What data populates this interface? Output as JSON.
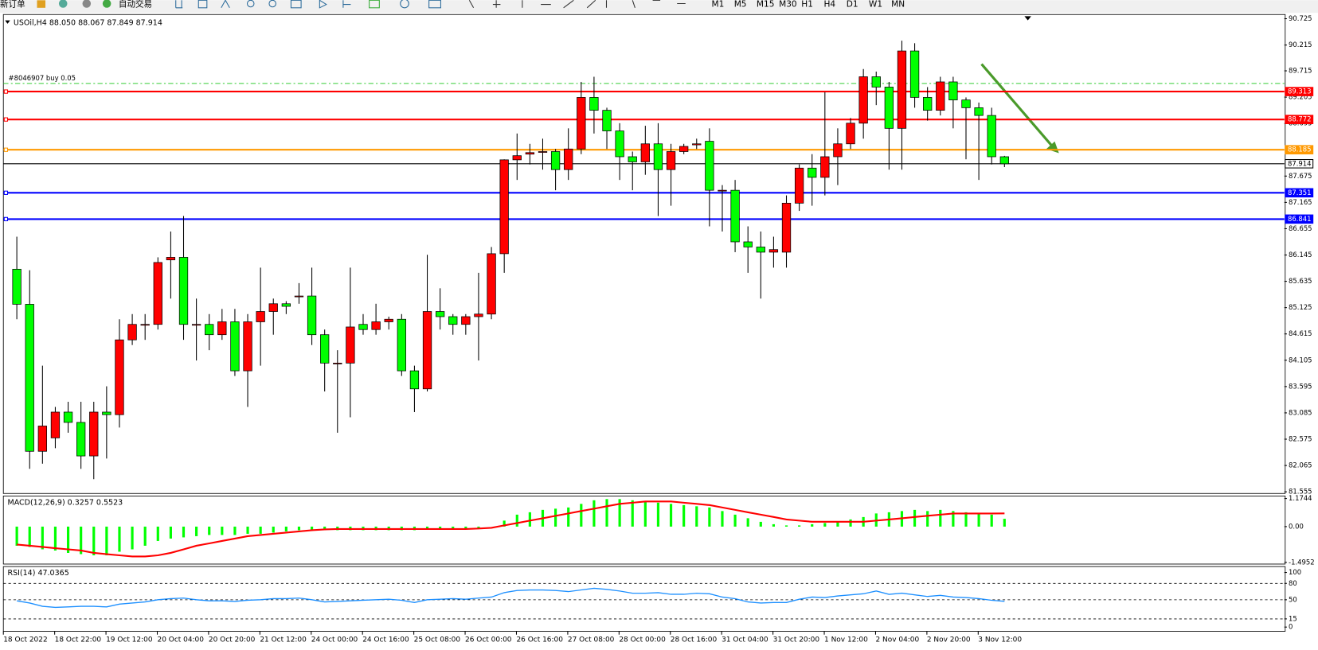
{
  "toolbar": {
    "new_order": "新订单",
    "auto_trading": "自动交易",
    "timeframes": [
      "M1",
      "M5",
      "M15",
      "M30",
      "H1",
      "H4",
      "D1",
      "W1",
      "MN"
    ]
  },
  "chart_data": [
    {
      "type": "candlestick",
      "title": "USOil,H4 88.050 88.067 87.849 87.914",
      "categories": [
        "18 Oct 2022",
        null,
        null,
        null,
        "18 Oct 22:00",
        null,
        null,
        null,
        "19 Oct 12:00",
        null,
        null,
        null,
        "20 Oct 04:00",
        null,
        null,
        null,
        "20 Oct 20:00",
        null,
        null,
        null,
        "21 Oct 12:00",
        null,
        null,
        null,
        "24 Oct 00:00",
        null,
        null,
        null,
        "24 Oct 16:00",
        null,
        null,
        null,
        "25 Oct 08:00",
        null,
        null,
        null,
        "26 Oct 00:00",
        null,
        null,
        null,
        "26 Oct 16:00",
        null,
        null,
        null,
        "27 Oct 08:00",
        null,
        null,
        null,
        "28 Oct 00:00",
        null,
        null,
        null,
        "28 Oct 16:00",
        null,
        null,
        null,
        "31 Oct 04:00",
        null,
        null,
        null,
        "31 Oct 20:00",
        null,
        null,
        null,
        "1 Nov 12:00",
        null,
        null,
        null,
        "2 Nov 04:00",
        null,
        null,
        null,
        "2 Nov 20:00",
        null,
        null,
        null,
        "3 Nov 12:00",
        null
      ],
      "open": [
        85.87,
        85.19,
        82.34,
        82.6,
        83.1,
        82.9,
        82.25,
        83.1,
        83.05,
        84.5,
        84.8,
        84.8,
        86.05,
        86.1,
        84.8,
        84.8,
        84.6,
        84.85,
        83.9,
        84.85,
        85.05,
        85.2,
        85.35,
        85.35,
        84.6,
        84.05,
        84.05,
        84.8,
        84.7,
        84.85,
        84.9,
        83.9,
        83.55,
        85.05,
        84.95,
        84.8,
        84.95,
        85.0,
        86.17,
        87.99,
        88.1,
        88.15,
        88.15,
        87.8,
        88.2,
        89.2,
        88.95,
        88.55,
        88.05,
        87.95,
        88.3,
        87.8,
        88.15,
        88.28,
        88.35,
        87.4,
        87.4,
        86.4,
        86.3,
        86.2,
        86.2,
        87.15,
        87.83,
        87.65,
        88.05,
        88.3,
        88.7,
        89.6,
        89.4,
        88.6,
        90.1,
        89.2,
        88.95,
        89.5,
        89.15,
        89.0,
        88.85,
        88.05
      ],
      "high": [
        86.5,
        85.85,
        84.0,
        83.2,
        83.3,
        83.3,
        83.3,
        83.6,
        84.9,
        85.0,
        85.0,
        86.1,
        86.6,
        86.9,
        85.3,
        85.0,
        85.1,
        85.1,
        85.0,
        85.9,
        85.3,
        85.25,
        85.6,
        85.9,
        84.7,
        84.3,
        85.9,
        85.0,
        85.2,
        84.95,
        85.0,
        84.0,
        86.15,
        85.5,
        85.0,
        85.0,
        85.8,
        86.3,
        88.0,
        88.5,
        88.3,
        88.4,
        88.2,
        88.6,
        89.5,
        89.6,
        89.0,
        88.7,
        88.15,
        88.65,
        88.7,
        88.3,
        88.3,
        88.4,
        88.6,
        87.5,
        87.6,
        86.7,
        86.6,
        86.5,
        87.3,
        87.9,
        88.1,
        89.3,
        88.6,
        88.8,
        89.75,
        89.7,
        89.5,
        90.3,
        90.25,
        89.4,
        89.6,
        89.6,
        89.2,
        89.1,
        89.0,
        88.067
      ],
      "low": [
        84.9,
        82.0,
        82.1,
        82.4,
        82.7,
        82.0,
        81.8,
        82.2,
        82.8,
        84.4,
        84.5,
        84.7,
        85.3,
        84.5,
        84.1,
        84.3,
        84.5,
        83.8,
        83.2,
        84.0,
        84.6,
        85.0,
        85.2,
        84.4,
        83.5,
        82.7,
        83.0,
        84.6,
        84.6,
        84.7,
        83.8,
        83.1,
        83.5,
        84.7,
        84.6,
        84.6,
        84.1,
        84.9,
        85.8,
        87.6,
        87.9,
        87.8,
        87.4,
        87.6,
        88.1,
        88.5,
        88.2,
        87.6,
        87.4,
        87.7,
        86.9,
        87.1,
        88.1,
        88.2,
        86.7,
        86.6,
        86.2,
        85.8,
        85.3,
        85.9,
        85.9,
        87.0,
        87.1,
        87.3,
        87.5,
        88.2,
        88.4,
        89.05,
        87.8,
        87.8,
        89.0,
        88.75,
        88.85,
        88.6,
        88.0,
        87.6,
        87.9,
        87.849
      ],
      "close": [
        85.19,
        82.34,
        82.83,
        83.1,
        82.9,
        82.25,
        83.1,
        83.05,
        84.5,
        84.8,
        84.8,
        86.0,
        86.1,
        84.8,
        84.8,
        84.6,
        84.85,
        83.9,
        84.85,
        85.05,
        85.2,
        85.15,
        85.35,
        84.6,
        84.05,
        84.05,
        84.75,
        84.7,
        84.85,
        84.9,
        83.9,
        83.55,
        85.05,
        84.95,
        84.8,
        84.95,
        85.0,
        86.17,
        87.99,
        88.07,
        88.13,
        88.15,
        87.8,
        88.2,
        89.2,
        88.95,
        88.55,
        88.05,
        87.95,
        88.3,
        87.8,
        88.15,
        88.25,
        88.3,
        87.4,
        87.4,
        86.4,
        86.3,
        86.2,
        86.25,
        87.15,
        87.83,
        87.65,
        88.05,
        88.3,
        88.7,
        89.6,
        89.4,
        88.6,
        90.1,
        89.2,
        88.95,
        89.5,
        89.15,
        89.0,
        88.85,
        88.05,
        87.914
      ],
      "up_color": "#ff0000",
      "down_color": "#00ff00",
      "ylim": [
        81.555,
        90.725
      ],
      "yticks": [
        90.725,
        90.215,
        89.715,
        89.205,
        88.695,
        87.675,
        87.165,
        86.655,
        86.145,
        85.635,
        85.125,
        84.615,
        84.105,
        83.595,
        83.085,
        82.575,
        82.065,
        81.555
      ],
      "levels": [
        {
          "value": 89.313,
          "color": "#ff0000"
        },
        {
          "value": 88.772,
          "color": "#ff0000"
        },
        {
          "value": 88.185,
          "color": "#ff9900"
        },
        {
          "value": 87.914,
          "color": "#000000"
        },
        {
          "value": 87.351,
          "color": "#0000ff"
        },
        {
          "value": 86.841,
          "color": "#0000ff"
        }
      ],
      "order_line": {
        "label": "#8046907 buy 0.05",
        "value": 89.47,
        "color": "#33cc33"
      }
    },
    {
      "type": "macd",
      "title": "MACD(12,26,9) 0.3257 0.5523",
      "histogram": [
        -0.8,
        -0.85,
        -0.95,
        -1.0,
        -1.1,
        -1.15,
        -1.2,
        -1.2,
        -1.05,
        -0.95,
        -0.8,
        -0.6,
        -0.5,
        -0.45,
        -0.4,
        -0.35,
        -0.35,
        -0.35,
        -0.3,
        -0.3,
        -0.25,
        -0.2,
        -0.15,
        -0.15,
        -0.15,
        -0.15,
        -0.15,
        -0.15,
        -0.15,
        -0.15,
        -0.15,
        -0.15,
        -0.1,
        -0.1,
        -0.1,
        -0.1,
        -0.05,
        0.0,
        0.25,
        0.5,
        0.6,
        0.7,
        0.75,
        0.8,
        0.95,
        1.1,
        1.15,
        1.15,
        1.1,
        1.05,
        1.0,
        0.95,
        0.9,
        0.85,
        0.8,
        0.65,
        0.5,
        0.35,
        0.2,
        0.1,
        0.05,
        0.05,
        0.1,
        0.15,
        0.2,
        0.3,
        0.4,
        0.55,
        0.6,
        0.65,
        0.7,
        0.65,
        0.7,
        0.65,
        0.6,
        0.55,
        0.5,
        0.3257
      ],
      "signal": [
        -0.75,
        -0.8,
        -0.85,
        -0.9,
        -0.95,
        -1.0,
        -1.1,
        -1.15,
        -1.2,
        -1.25,
        -1.25,
        -1.2,
        -1.1,
        -0.95,
        -0.8,
        -0.7,
        -0.6,
        -0.5,
        -0.4,
        -0.35,
        -0.3,
        -0.25,
        -0.2,
        -0.15,
        -0.12,
        -0.1,
        -0.1,
        -0.1,
        -0.1,
        -0.1,
        -0.1,
        -0.1,
        -0.1,
        -0.1,
        -0.1,
        -0.1,
        -0.08,
        -0.05,
        0.05,
        0.15,
        0.25,
        0.35,
        0.45,
        0.55,
        0.65,
        0.75,
        0.85,
        0.95,
        1.0,
        1.05,
        1.05,
        1.05,
        1.0,
        0.95,
        0.9,
        0.8,
        0.7,
        0.6,
        0.5,
        0.4,
        0.3,
        0.25,
        0.2,
        0.2,
        0.2,
        0.2,
        0.2,
        0.25,
        0.3,
        0.35,
        0.4,
        0.45,
        0.5,
        0.55,
        0.55,
        0.55,
        0.55,
        0.5523
      ],
      "histogram_color": "#00ff00",
      "signal_color": "#ff0000",
      "ylim": [
        -1.4952,
        1.1744
      ],
      "yticks": [
        1.1744,
        {
          "value": 0,
          "label": "0.00"
        },
        -1.4952
      ]
    },
    {
      "type": "line",
      "title": "RSI(14) 47.0365",
      "values": [
        48,
        44,
        38,
        36,
        37,
        38,
        38,
        37,
        42,
        44,
        46,
        50,
        52,
        53,
        50,
        48,
        48,
        47,
        49,
        50,
        52,
        52,
        53,
        50,
        46,
        47,
        48,
        49,
        50,
        51,
        49,
        45,
        50,
        51,
        52,
        51,
        53,
        55,
        63,
        67,
        68,
        68,
        67,
        65,
        68,
        71,
        69,
        66,
        62,
        62,
        63,
        60,
        60,
        62,
        61,
        55,
        52,
        46,
        44,
        45,
        45,
        51,
        55,
        54,
        57,
        59,
        61,
        66,
        60,
        62,
        59,
        56,
        58,
        55,
        54,
        52,
        49,
        47.0365
      ],
      "color": "#1e90ff",
      "ylim": [
        0,
        100
      ],
      "yticks": [
        100,
        80,
        50,
        15,
        0
      ],
      "levels": [
        80,
        50,
        15
      ]
    }
  ]
}
